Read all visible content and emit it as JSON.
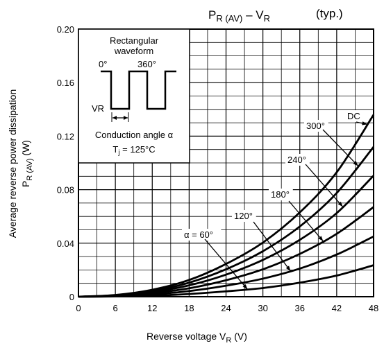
{
  "chart_data": {
    "type": "line",
    "title": {
      "main": "P",
      "main_sub": "R (AV)",
      "dash": " – ",
      "main2": "V",
      "main2_sub": "R",
      "typ": "(typ.)"
    },
    "xlabel": {
      "text": "Reverse voltage   V",
      "sub": "R",
      "unit": "   (V)"
    },
    "ylabel": {
      "line1": "Average reverse power dissipation",
      "line2_main": "P",
      "line2_sub": "R (AV)",
      "line2_unit": "   (W)"
    },
    "xlim": [
      0,
      48
    ],
    "ylim": [
      0,
      0.2
    ],
    "x_ticks": [
      "0",
      "6",
      "12",
      "18",
      "24",
      "30",
      "36",
      "42",
      "48"
    ],
    "y_ticks": [
      "0",
      "0.04",
      "0.08",
      "0.12",
      "0.16",
      "0.20"
    ],
    "grid": true,
    "series": [
      {
        "name": "α = 60°",
        "x": [
          0,
          6,
          12,
          18,
          24,
          30,
          36,
          42,
          48
        ],
        "y": [
          0,
          0.0002,
          0.0008,
          0.002,
          0.004,
          0.0065,
          0.0105,
          0.0158,
          0.0235
        ]
      },
      {
        "name": "120°",
        "x": [
          0,
          6,
          12,
          18,
          24,
          30,
          36,
          42,
          48
        ],
        "y": [
          0,
          0.0004,
          0.0017,
          0.0042,
          0.0082,
          0.0135,
          0.021,
          0.0315,
          0.045
        ]
      },
      {
        "name": "180°",
        "x": [
          0,
          6,
          12,
          18,
          24,
          30,
          36,
          42,
          48
        ],
        "y": [
          0,
          0.0007,
          0.0027,
          0.0063,
          0.0123,
          0.0205,
          0.032,
          0.047,
          0.067
        ]
      },
      {
        "name": "240°",
        "x": [
          0,
          6,
          12,
          18,
          24,
          30,
          36,
          42,
          48
        ],
        "y": [
          0,
          0.0009,
          0.0035,
          0.0085,
          0.0165,
          0.0275,
          0.0425,
          0.0625,
          0.0905
        ]
      },
      {
        "name": "300°",
        "x": [
          0,
          6,
          12,
          18,
          24,
          30,
          36,
          42,
          48
        ],
        "y": [
          0,
          0.0011,
          0.0043,
          0.0105,
          0.0205,
          0.034,
          0.0525,
          0.0775,
          0.112
        ]
      },
      {
        "name": "DC",
        "x": [
          0,
          6,
          12,
          18,
          24,
          30,
          36,
          42,
          48
        ],
        "y": [
          0,
          0.0013,
          0.0052,
          0.0125,
          0.0245,
          0.0405,
          0.063,
          0.093,
          0.136
        ]
      }
    ],
    "curve_labels": [
      "α = 60°",
      "120°",
      "180°",
      "240°",
      "300°",
      "DC"
    ],
    "inset": {
      "line1": "Rectangular",
      "line2": "waveform",
      "angle0": "0°",
      "angle360": "360°",
      "vr": "VR",
      "conduction_prefix": "Conduction angle ",
      "alpha": "α",
      "tj_main": "T",
      "tj_sub": "j",
      "tj_rest": " = 125°C"
    }
  }
}
